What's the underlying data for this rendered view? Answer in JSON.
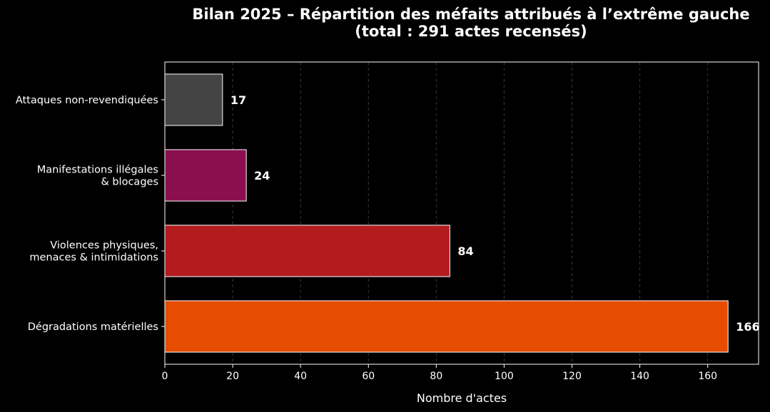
{
  "chart_data": {
    "type": "bar",
    "orientation": "horizontal",
    "title_lines": [
      "Bilan 2025 – Répartition des méfaits attribués à l’extrême gauche",
      "(total : 291 actes recensés)"
    ],
    "xlabel": "Nombre d'actes",
    "ylabel": "",
    "xlim": [
      0,
      175
    ],
    "xticks": [
      0,
      20,
      40,
      60,
      80,
      100,
      120,
      140,
      160
    ],
    "grid": "vertical dashed",
    "categories": [
      [
        "Attaques non-revendiquées"
      ],
      [
        "Manifestations illégales",
        "& blocages"
      ],
      [
        "Violences physiques,",
        "menaces & intimidations"
      ],
      [
        "Dégradations matérielles"
      ]
    ],
    "values": [
      17,
      24,
      84,
      166
    ],
    "colors": [
      "#444444",
      "#8b0e4f",
      "#b31b1e",
      "#e64d00"
    ],
    "background": "#000000"
  }
}
